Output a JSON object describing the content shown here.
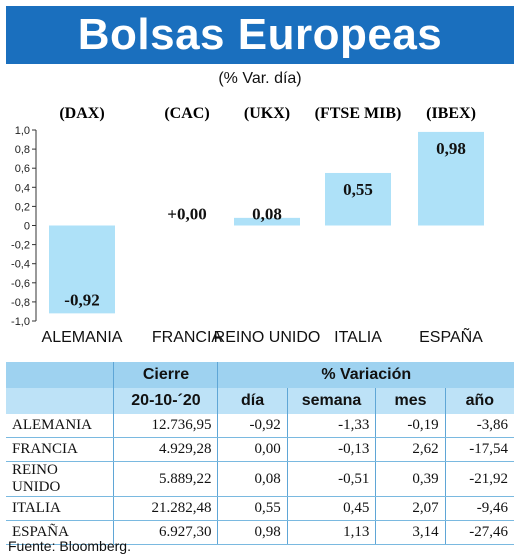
{
  "header": {
    "title": "Bolsas Europeas",
    "subtitle": "(% Var. día)"
  },
  "chart_data": {
    "type": "bar",
    "title": "Bolsas Europeas",
    "subtitle": "(% Var. día)",
    "indices": [
      "(DAX)",
      "(CAC)",
      "(UKX)",
      "(FTSE MIB)",
      "(IBEX)"
    ],
    "categories": [
      "ALEMANIA",
      "FRANCIA",
      "REINO UNIDO",
      "ITALIA",
      "ESPAÑA"
    ],
    "values": [
      -0.92,
      0.0,
      0.08,
      0.55,
      0.98
    ],
    "value_labels": [
      "-0,92",
      "+0,00",
      "0,08",
      "0,55",
      "0,98"
    ],
    "ylim": [
      -1.0,
      1.0
    ],
    "yticks": [
      "1,0",
      "0,8",
      "0,6",
      "0,4",
      "0,2",
      "0",
      "-0,2",
      "-0,4",
      "-0,6",
      "-0,8",
      "-1,0"
    ],
    "bar_colors": [
      "#aee1f8",
      "#aee1f8",
      "#aee1f8",
      "#aee1f8",
      "#aee1f8"
    ],
    "grid": false
  },
  "table": {
    "header_group_1": "Cierre",
    "header_group_2": "% Variación",
    "columns": [
      "20-10-´20",
      "día",
      "semana",
      "mes",
      "año"
    ],
    "rows": [
      {
        "name": "ALEMANIA",
        "cierre": "12.736,95",
        "dia": "-0,92",
        "semana": "-1,33",
        "mes": "-0,19",
        "anio": "-3,86"
      },
      {
        "name": "FRANCIA",
        "cierre": "4.929,28",
        "dia": "0,00",
        "semana": "-0,13",
        "mes": "2,62",
        "anio": "-17,54"
      },
      {
        "name": "REINO UNIDO",
        "cierre": "5.889,22",
        "dia": "0,08",
        "semana": "-0,51",
        "mes": "0,39",
        "anio": "-21,92"
      },
      {
        "name": "ITALIA",
        "cierre": "21.282,48",
        "dia": "0,55",
        "semana": "0,45",
        "mes": "2,07",
        "anio": "-9,46"
      },
      {
        "name": "ESPAÑA",
        "cierre": "6.927,30",
        "dia": "0,98",
        "semana": "1,13",
        "mes": "3,14",
        "anio": "-27,46"
      }
    ]
  },
  "source": "Fuente: Bloomberg.",
  "colors": {
    "banner": "#1a6fbe",
    "bar": "#aee1f8",
    "table_header_1": "#9ed2f0",
    "table_header_2": "#bde2f7"
  }
}
